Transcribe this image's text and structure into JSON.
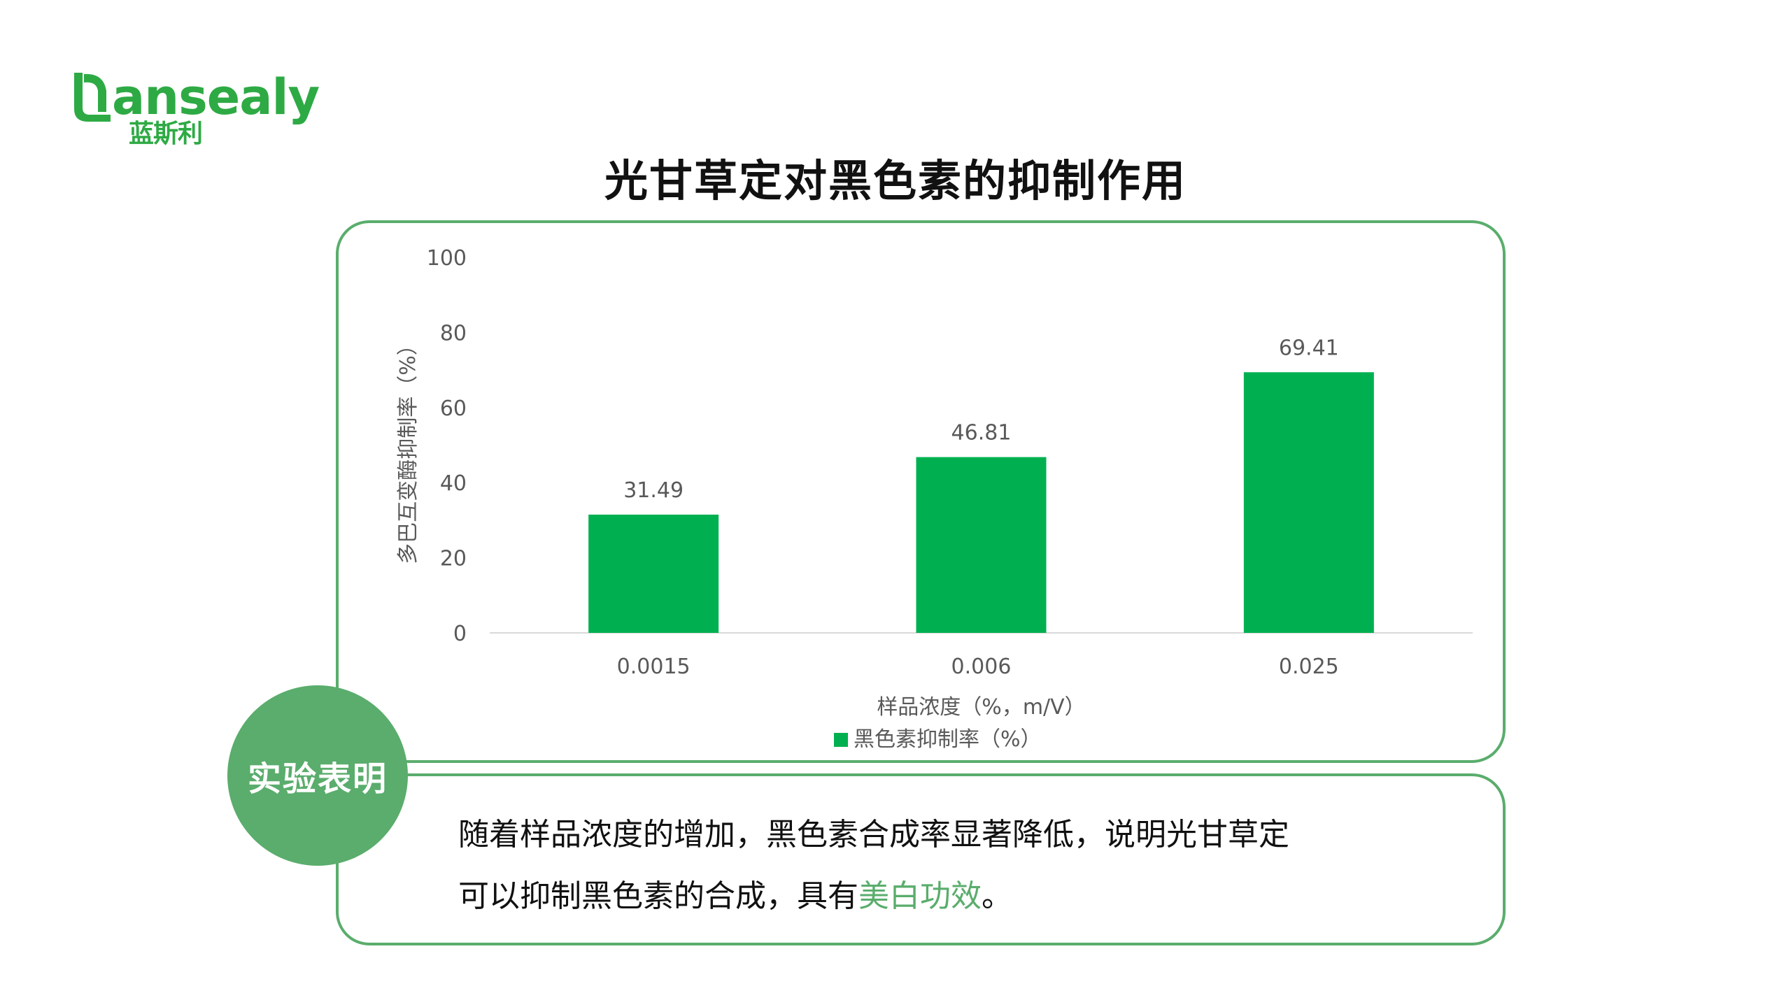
{
  "logo": {
    "wordmark": "ansealy",
    "chinese": "蓝斯利"
  },
  "page_title": "光甘草定对黑色素的抑制作用",
  "chart_data": {
    "type": "bar",
    "categories": [
      "0.0015",
      "0.006",
      "0.025"
    ],
    "series": [
      {
        "name": "黑色素抑制率（%）",
        "values": [
          31.49,
          46.81,
          69.41
        ],
        "labels": [
          "31.49",
          "46.81",
          "69.41"
        ]
      }
    ],
    "xlabel": "样品浓度（%，m/V）",
    "ylabel": "多巴互变酶抑制率（%）",
    "ylim": [
      0,
      100
    ],
    "yticks": [
      0,
      20,
      40,
      60,
      80,
      100
    ],
    "grid": false,
    "legend_position": "bottom",
    "colors": {
      "bar": "#00b050",
      "axis_text": "#595959",
      "baseline": "#d9d9d9"
    }
  },
  "badge": {
    "label": "实验表明"
  },
  "conclusion": {
    "line1": "随着样品浓度的增加，黑色素合成率显著降低，说明光甘草定",
    "line2_prefix": "可以抑制黑色素的合成，具有",
    "highlight": "美白功效",
    "line2_suffix": "。"
  },
  "colors": {
    "brand": "#2eaa44",
    "frame": "#5aad6c"
  }
}
